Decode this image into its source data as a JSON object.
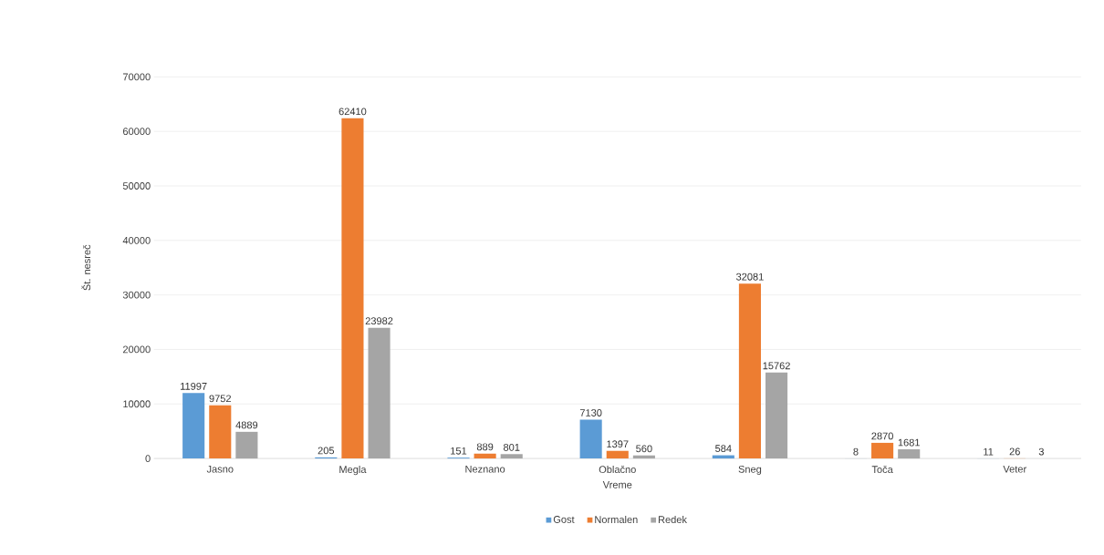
{
  "chart_data": {
    "type": "bar",
    "xlabel": "Vreme",
    "ylabel": "Št. nesreč",
    "categories": [
      "Jasno",
      "Megla",
      "Neznano",
      "Oblačno",
      "Sneg",
      "Toča",
      "Veter"
    ],
    "series": [
      {
        "name": "Gost",
        "color": "#5b9bd5",
        "values": [
          11997,
          205,
          151,
          7130,
          584,
          8,
          11
        ]
      },
      {
        "name": "Normalen",
        "color": "#ed7d31",
        "values": [
          9752,
          62410,
          889,
          1397,
          32081,
          2870,
          26
        ]
      },
      {
        "name": "Redek",
        "color": "#a5a5a5",
        "values": [
          4889,
          23982,
          801,
          560,
          15762,
          1681,
          3
        ]
      }
    ],
    "ylim": [
      0,
      70000
    ],
    "yticks": [
      0,
      10000,
      20000,
      30000,
      40000,
      50000,
      60000,
      70000
    ],
    "grid": "y",
    "legend": "bottom",
    "data_labels": true
  }
}
